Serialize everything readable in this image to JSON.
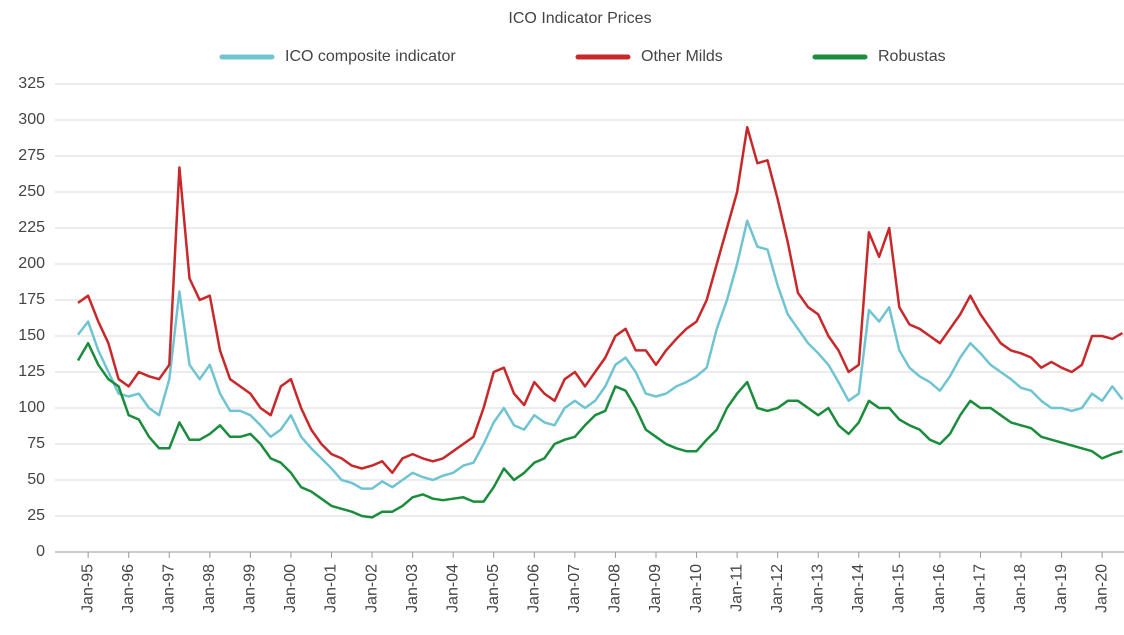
{
  "chart_data": {
    "type": "line",
    "title": "ICO Indicator Prices",
    "categories": [
      null,
      "Jan-95",
      null,
      null,
      null,
      "Jan-96",
      null,
      null,
      null,
      "Jan-97",
      null,
      null,
      null,
      "Jan-98",
      null,
      null,
      null,
      "Jan-99",
      null,
      null,
      null,
      "Jan-00",
      null,
      null,
      null,
      "Jan-01",
      null,
      null,
      null,
      "Jan-02",
      null,
      null,
      null,
      "Jan-03",
      null,
      null,
      null,
      "Jan-04",
      null,
      null,
      null,
      "Jan-05",
      null,
      null,
      null,
      "Jan-06",
      null,
      null,
      null,
      "Jan-07",
      null,
      null,
      null,
      "Jan-08",
      null,
      null,
      null,
      "Jan-09",
      null,
      null,
      null,
      "Jan-10",
      null,
      null,
      null,
      "Jan-11",
      null,
      null,
      null,
      "Jan-12",
      null,
      null,
      null,
      "Jan-13",
      null,
      null,
      null,
      "Jan-14",
      null,
      null,
      null,
      "Jan-15",
      null,
      null,
      null,
      "Jan-16",
      null,
      null,
      null,
      "Jan-17",
      null,
      null,
      null,
      "Jan-18",
      null,
      null,
      null,
      "Jan-19",
      null,
      null,
      null,
      "Jan-20",
      null,
      null
    ],
    "series": [
      {
        "name": "ICO composite indicator",
        "color": "#70c4d2",
        "values": [
          151,
          160,
          140,
          125,
          110,
          108,
          110,
          100,
          95,
          120,
          181,
          130,
          120,
          130,
          110,
          98,
          98,
          95,
          88,
          80,
          85,
          95,
          80,
          72,
          65,
          58,
          50,
          48,
          44,
          44,
          49,
          45,
          50,
          55,
          52,
          50,
          53,
          55,
          60,
          62,
          75,
          90,
          100,
          88,
          85,
          95,
          90,
          88,
          100,
          105,
          100,
          105,
          115,
          130,
          135,
          125,
          110,
          108,
          110,
          115,
          118,
          122,
          128,
          155,
          175,
          200,
          230,
          212,
          210,
          185,
          165,
          155,
          145,
          138,
          130,
          118,
          105,
          110,
          168,
          160,
          170,
          140,
          128,
          122,
          118,
          112,
          122,
          135,
          145,
          138,
          130,
          125,
          120,
          114,
          112,
          105,
          100,
          100,
          98,
          100,
          110,
          105,
          115,
          106
        ]
      },
      {
        "name": "Other Milds",
        "color": "#c8282a",
        "values": [
          173,
          178,
          160,
          145,
          120,
          115,
          125,
          122,
          120,
          130,
          267,
          190,
          175,
          178,
          140,
          120,
          115,
          110,
          100,
          95,
          115,
          120,
          100,
          85,
          75,
          68,
          65,
          60,
          58,
          60,
          63,
          55,
          65,
          68,
          65,
          63,
          65,
          70,
          75,
          80,
          100,
          125,
          128,
          110,
          102,
          118,
          110,
          105,
          120,
          125,
          115,
          125,
          135,
          150,
          155,
          140,
          140,
          130,
          140,
          148,
          155,
          160,
          175,
          200,
          225,
          250,
          295,
          270,
          272,
          245,
          215,
          180,
          170,
          165,
          150,
          140,
          125,
          130,
          222,
          205,
          225,
          170,
          158,
          155,
          150,
          145,
          155,
          165,
          178,
          165,
          155,
          145,
          140,
          138,
          135,
          128,
          132,
          128,
          125,
          130,
          150,
          150,
          148,
          152
        ]
      },
      {
        "name": "Robustas",
        "color": "#1a8c3c",
        "values": [
          133,
          145,
          130,
          120,
          115,
          95,
          92,
          80,
          72,
          72,
          90,
          78,
          78,
          82,
          88,
          80,
          80,
          82,
          75,
          65,
          62,
          55,
          45,
          42,
          37,
          32,
          30,
          28,
          25,
          24,
          28,
          28,
          32,
          38,
          40,
          37,
          36,
          37,
          38,
          35,
          35,
          45,
          58,
          50,
          55,
          62,
          65,
          75,
          78,
          80,
          88,
          95,
          98,
          115,
          112,
          100,
          85,
          80,
          75,
          72,
          70,
          70,
          78,
          85,
          100,
          110,
          118,
          100,
          98,
          100,
          105,
          105,
          100,
          95,
          100,
          88,
          82,
          90,
          105,
          100,
          100,
          92,
          88,
          85,
          78,
          75,
          82,
          95,
          105,
          100,
          100,
          95,
          90,
          88,
          86,
          80,
          78,
          76,
          74,
          72,
          70,
          65,
          68,
          70
        ]
      }
    ],
    "ylim": [
      0,
      325
    ],
    "yticks": [
      0,
      25,
      50,
      75,
      100,
      125,
      150,
      175,
      200,
      225,
      250,
      275,
      300,
      325
    ],
    "grid": true,
    "legend": "top"
  }
}
